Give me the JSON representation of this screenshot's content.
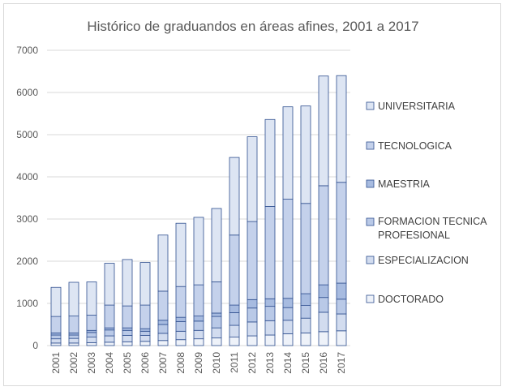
{
  "chart_data": {
    "type": "bar",
    "stacked": true,
    "title": "Histórico de graduandos en áreas afines, 2001 a 2017",
    "xlabel": "",
    "ylabel": "",
    "ylim": [
      0,
      7000
    ],
    "yticks": [
      0,
      1000,
      2000,
      3000,
      4000,
      5000,
      6000,
      7000
    ],
    "grid": true,
    "legend_position": "right",
    "categories": [
      "2001",
      "2002",
      "2003",
      "2004",
      "2005",
      "2006",
      "2007",
      "2008",
      "2009",
      "2010",
      "2011",
      "2012",
      "2013",
      "2014",
      "2015",
      "2016",
      "2017"
    ],
    "series": [
      {
        "name": "DOCTORADO",
        "color": "#eef2f9",
        "values": [
          60,
          60,
          70,
          80,
          90,
          100,
          120,
          140,
          160,
          180,
          200,
          230,
          250,
          280,
          300,
          330,
          350
        ]
      },
      {
        "name": "ESPECIALIZACION",
        "color": "#d2dcef",
        "values": [
          100,
          110,
          130,
          150,
          150,
          140,
          170,
          200,
          200,
          240,
          280,
          330,
          340,
          320,
          350,
          460,
          400
        ]
      },
      {
        "name": "FORMACION TECNICA PROFESIONAL",
        "color": "#b9c9e7",
        "values": [
          90,
          80,
          110,
          140,
          120,
          100,
          210,
          230,
          220,
          270,
          300,
          330,
          340,
          300,
          300,
          350,
          350
        ]
      },
      {
        "name": "MAESTRIA",
        "color": "#a7bbe0",
        "values": [
          50,
          50,
          50,
          50,
          60,
          60,
          100,
          100,
          120,
          80,
          180,
          200,
          180,
          220,
          280,
          300,
          380
        ]
      },
      {
        "name": "TECNOLOGICA",
        "color": "#c4d1eb",
        "values": [
          390,
          400,
          360,
          540,
          520,
          560,
          690,
          730,
          740,
          740,
          1660,
          1850,
          2190,
          2350,
          2140,
          2350,
          2390
        ]
      },
      {
        "name": "UNIVERSITARIA",
        "color": "#dde5f3",
        "values": [
          690,
          800,
          790,
          990,
          1100,
          1010,
          1330,
          1500,
          1600,
          1740,
          1840,
          2010,
          2060,
          2190,
          2310,
          2600,
          2530
        ]
      }
    ]
  }
}
